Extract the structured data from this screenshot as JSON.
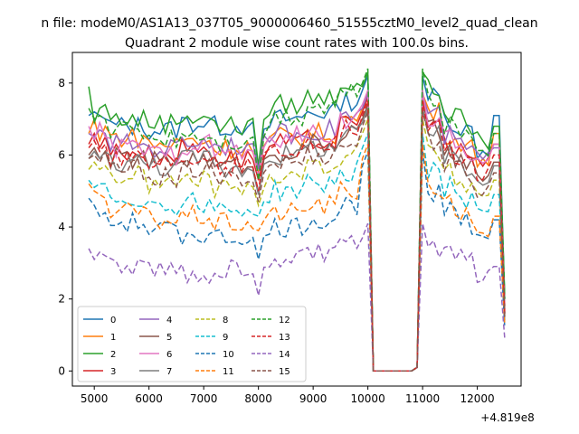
{
  "chart_data": {
    "type": "line",
    "suptitle": "n file: modeM0/AS1A13_037T05_9000006460_51555cztM0_level2_quad_clean",
    "title": "Quadrant 2 module wise count rates with 100.0s bins.",
    "xlabel": "",
    "ylabel": "",
    "x_offset_label": "+4.819e8",
    "xlim": [
      4600,
      12800
    ],
    "ylim": [
      -0.42,
      8.85
    ],
    "x_ticks": [
      5000,
      6000,
      7000,
      8000,
      9000,
      10000,
      11000,
      12000
    ],
    "y_ticks": [
      0,
      2,
      4,
      6,
      8
    ],
    "legend_position": "lower-left",
    "x_range": [
      4900,
      12500
    ],
    "x_step": 100,
    "series": [
      {
        "name": "0",
        "color": "#1f77b4",
        "dash": "solid",
        "start": [
          7.1,
          7.2,
          7.1,
          7.0
        ],
        "mid": [
          6.8,
          6.7,
          6.9,
          6.8
        ],
        "pre_dip": [
          6.9,
          6.8
        ],
        "dip": 5.6,
        "post_dip": [
          6.6,
          6.8
        ],
        "late": [
          7.0,
          7.2,
          7.5
        ],
        "peak": 8.2,
        "after": [
          7.6,
          7.0,
          6.8,
          6.7
        ],
        "end": [
          6.1,
          7.1,
          2.0
        ]
      },
      {
        "name": "1",
        "color": "#ff7f0e",
        "dash": "solid",
        "start": [
          6.6,
          7.0,
          6.4,
          6.8
        ],
        "mid": [
          6.5,
          6.3,
          6.4,
          6.2
        ],
        "pre_dip": [
          6.3,
          6.1
        ],
        "dip": 5.5,
        "post_dip": [
          6.2,
          6.4
        ],
        "late": [
          6.5,
          6.6,
          7.0
        ],
        "peak": 7.7,
        "after": [
          7.2,
          6.6,
          6.4,
          6.2
        ],
        "end": [
          5.9,
          6.6,
          1.8
        ]
      },
      {
        "name": "2",
        "color": "#2ca02c",
        "dash": "solid",
        "start": [
          7.9,
          6.9,
          7.3,
          7.4
        ],
        "mid": [
          7.0,
          6.9,
          7.1,
          6.8
        ],
        "pre_dip": [
          7.0,
          6.9
        ],
        "dip": 5.7,
        "post_dip": [
          7.0,
          7.2
        ],
        "late": [
          7.4,
          7.6,
          8.0
        ],
        "peak": 8.3,
        "after": [
          7.8,
          7.2,
          7.0,
          6.8
        ],
        "end": [
          6.4,
          6.8,
          2.1
        ]
      },
      {
        "name": "3",
        "color": "#d62728",
        "dash": "solid",
        "start": [
          6.3,
          6.6,
          6.2,
          6.5
        ],
        "mid": [
          6.1,
          6.0,
          6.2,
          5.9
        ],
        "pre_dip": [
          6.0,
          5.9
        ],
        "dip": 5.3,
        "post_dip": [
          6.0,
          6.2
        ],
        "late": [
          6.3,
          6.4,
          6.8
        ],
        "peak": 7.6,
        "after": [
          6.9,
          6.3,
          6.1,
          6.0
        ],
        "end": [
          5.7,
          6.3,
          1.7
        ]
      },
      {
        "name": "4",
        "color": "#9467bd",
        "dash": "solid",
        "start": [
          6.6,
          6.5,
          6.7,
          6.6
        ],
        "mid": [
          6.3,
          6.2,
          6.4,
          6.3
        ],
        "pre_dip": [
          6.3,
          6.2
        ],
        "dip": 5.6,
        "post_dip": [
          6.4,
          6.5
        ],
        "late": [
          6.6,
          6.7,
          7.1
        ],
        "peak": 7.7,
        "after": [
          7.1,
          6.5,
          6.3,
          6.2
        ],
        "end": [
          5.9,
          6.2,
          1.8
        ]
      },
      {
        "name": "5",
        "color": "#8c564b",
        "dash": "solid",
        "start": [
          6.0,
          6.2,
          5.9,
          6.1
        ],
        "mid": [
          5.9,
          5.8,
          5.9,
          5.7
        ],
        "pre_dip": [
          5.8,
          5.7
        ],
        "dip": 4.9,
        "post_dip": [
          5.8,
          6.0
        ],
        "late": [
          6.1,
          6.3,
          6.6
        ],
        "peak": 7.4,
        "after": [
          6.7,
          6.0,
          5.9,
          5.7
        ],
        "end": [
          5.3,
          5.8,
          1.6
        ]
      },
      {
        "name": "6",
        "color": "#e377c2",
        "dash": "solid",
        "start": [
          6.8,
          6.4,
          6.9,
          6.5
        ],
        "mid": [
          6.2,
          6.0,
          6.3,
          6.1
        ],
        "pre_dip": [
          6.1,
          6.0
        ],
        "dip": 5.4,
        "post_dip": [
          6.2,
          6.4
        ],
        "late": [
          6.5,
          6.6,
          7.0
        ],
        "peak": 7.8,
        "after": [
          7.0,
          6.4,
          6.2,
          6.1
        ],
        "end": [
          5.8,
          6.3,
          1.8
        ]
      },
      {
        "name": "7",
        "color": "#7f7f7f",
        "dash": "solid",
        "start": [
          5.9,
          6.1,
          5.9,
          6.1
        ],
        "mid": [
          5.8,
          5.7,
          5.9,
          5.6
        ],
        "pre_dip": [
          5.7,
          5.6
        ],
        "dip": 4.9,
        "post_dip": [
          5.8,
          5.9
        ],
        "late": [
          6.0,
          6.2,
          6.5
        ],
        "peak": 7.3,
        "after": [
          6.6,
          5.9,
          5.8,
          5.6
        ],
        "end": [
          5.2,
          5.7,
          1.6
        ]
      },
      {
        "name": "8",
        "color": "#bcbd22",
        "dash": "6,3",
        "start": [
          5.6,
          5.8,
          5.6,
          5.7
        ],
        "mid": [
          5.4,
          5.2,
          5.3,
          5.1
        ],
        "pre_dip": [
          5.1,
          5.0
        ],
        "dip": 4.6,
        "post_dip": [
          5.2,
          5.4
        ],
        "late": [
          5.5,
          5.7,
          6.0
        ],
        "peak": 7.0,
        "after": [
          6.1,
          5.5,
          5.3,
          5.2
        ],
        "end": [
          4.9,
          5.3,
          1.5
        ]
      },
      {
        "name": "9",
        "color": "#17becf",
        "dash": "6,3",
        "start": [
          5.3,
          5.1,
          5.2,
          5.2
        ],
        "mid": [
          4.8,
          4.6,
          4.7,
          4.5
        ],
        "pre_dip": [
          4.5,
          4.4
        ],
        "dip": 4.3,
        "post_dip": [
          4.6,
          4.8
        ],
        "late": [
          5.0,
          5.2,
          5.5
        ],
        "peak": 6.6,
        "after": [
          5.6,
          5.1,
          4.9,
          4.8
        ],
        "end": [
          4.5,
          4.9,
          1.4
        ]
      },
      {
        "name": "10",
        "color": "#1f77b4",
        "dash": "6,3",
        "start": [
          4.8,
          4.6,
          4.3,
          4.4
        ],
        "mid": [
          4.1,
          3.9,
          3.8,
          3.7
        ],
        "pre_dip": [
          3.7,
          3.6
        ],
        "dip": 3.1,
        "post_dip": [
          3.7,
          3.8
        ],
        "late": [
          4.0,
          4.2,
          4.6
        ],
        "peak": 6.1,
        "after": [
          5.0,
          4.4,
          4.2,
          4.1
        ],
        "end": [
          3.8,
          4.2,
          1.2
        ]
      },
      {
        "name": "11",
        "color": "#ff7f0e",
        "dash": "6,3",
        "start": [
          5.2,
          5.0,
          4.9,
          4.8
        ],
        "mid": [
          4.4,
          4.2,
          4.3,
          4.1
        ],
        "pre_dip": [
          4.1,
          4.0
        ],
        "dip": 3.9,
        "post_dip": [
          4.2,
          4.3
        ],
        "late": [
          4.4,
          4.6,
          5.0
        ],
        "peak": 6.3,
        "after": [
          5.1,
          4.6,
          4.4,
          4.3
        ],
        "end": [
          3.9,
          4.3,
          1.3
        ]
      },
      {
        "name": "12",
        "color": "#2ca02c",
        "dash": "6,3",
        "start": [
          7.3,
          7.0,
          7.1,
          7.0
        ],
        "mid": [
          6.7,
          6.5,
          6.6,
          6.4
        ],
        "pre_dip": [
          6.5,
          6.4
        ],
        "dip": 5.3,
        "post_dip": [
          6.6,
          6.9
        ],
        "late": [
          7.1,
          7.4,
          7.8
        ],
        "peak": 8.4,
        "after": [
          7.4,
          6.8,
          6.7,
          6.5
        ],
        "end": [
          6.2,
          6.6,
          2.0
        ]
      },
      {
        "name": "13",
        "color": "#d62728",
        "dash": "6,3",
        "start": [
          6.2,
          6.4,
          6.1,
          6.3
        ],
        "mid": [
          6.0,
          5.8,
          6.0,
          5.7
        ],
        "pre_dip": [
          5.8,
          5.7
        ],
        "dip": 5.0,
        "post_dip": [
          5.9,
          6.1
        ],
        "late": [
          6.2,
          6.4,
          6.7
        ],
        "peak": 7.5,
        "after": [
          6.8,
          6.1,
          6.0,
          5.8
        ],
        "end": [
          5.4,
          6.0,
          1.6
        ]
      },
      {
        "name": "14",
        "color": "#9467bd",
        "dash": "6,3",
        "start": [
          3.4,
          3.1,
          3.3,
          3.2
        ],
        "mid": [
          2.9,
          2.8,
          2.7,
          2.8
        ],
        "pre_dip": [
          2.7,
          2.6
        ],
        "dip": 2.1,
        "post_dip": [
          2.8,
          3.0
        ],
        "late": [
          3.1,
          3.3,
          3.5
        ],
        "peak": 4.1,
        "after": [
          3.4,
          3.2,
          3.1,
          3.0
        ],
        "end": [
          2.6,
          2.9,
          0.9
        ]
      },
      {
        "name": "15",
        "color": "#8c564b",
        "dash": "6,3",
        "start": [
          5.9,
          6.0,
          5.8,
          6.1
        ],
        "mid": [
          5.6,
          5.4,
          5.6,
          5.3
        ],
        "pre_dip": [
          5.4,
          5.3
        ],
        "dip": 4.7,
        "post_dip": [
          5.5,
          5.7
        ],
        "late": [
          5.8,
          6.0,
          6.3
        ],
        "peak": 7.2,
        "after": [
          6.4,
          5.7,
          5.6,
          5.4
        ],
        "end": [
          5.0,
          5.5,
          1.5
        ]
      }
    ]
  }
}
